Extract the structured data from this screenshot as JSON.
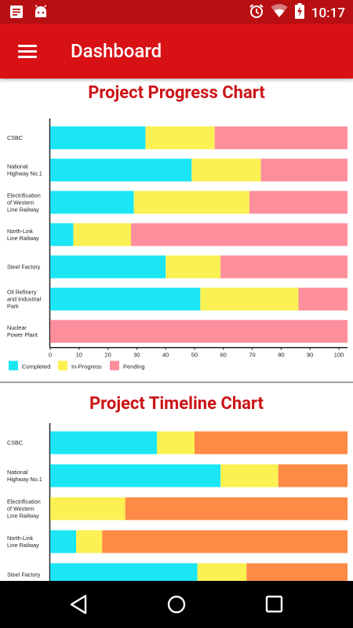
{
  "status_bar": {
    "time": "10:17",
    "left_icons": [
      "message-icon",
      "android-icon"
    ],
    "right_icons": [
      "alarm-icon",
      "wifi-icon",
      "battery-icon"
    ]
  },
  "app_bar": {
    "title": "Dashboard",
    "menu_icon": "hamburger-icon"
  },
  "colors": {
    "completed": "#1ae6f5",
    "in_progress": "#fbf152",
    "pending": "#fd8e9c",
    "delayed": "#fe8a45",
    "title_red": "#cc1417",
    "bar_red": "#d81115"
  },
  "chart_data": [
    {
      "type": "bar",
      "orientation": "horizontal",
      "stacked": true,
      "title": "Project Progress Chart",
      "categories": [
        "CSBC",
        "National Highway No.1",
        "Electrification of Western Line Railway",
        "North-Link Line Railway",
        "Steel Factory",
        "Oil Refinery and Industrial Park",
        "Nuclear Power Plant"
      ],
      "category_lines": [
        [
          "CSBC"
        ],
        [
          "National",
          "Highway No.1"
        ],
        [
          "Electrification",
          "of Western",
          "Line Railway"
        ],
        [
          "North-Link",
          "Line Railway"
        ],
        [
          "Steel Factory"
        ],
        [
          "Oil Refinery",
          "and Industrial",
          "Park"
        ],
        [
          "Nuclear",
          "Power Plant"
        ]
      ],
      "series": [
        {
          "name": "Completed",
          "values": [
            33,
            49,
            29,
            8,
            40,
            52,
            0
          ]
        },
        {
          "name": "In-Progress",
          "values": [
            24,
            24,
            40,
            20,
            19,
            34,
            0
          ]
        },
        {
          "name": "Pending",
          "values": [
            46,
            30,
            34,
            75,
            44,
            17,
            103
          ]
        }
      ],
      "xlim": [
        0,
        103
      ],
      "xticks": [
        0,
        10,
        20,
        30,
        40,
        50,
        60,
        70,
        80,
        90,
        100
      ],
      "legend_position": "bottom-left",
      "grid": false
    },
    {
      "type": "bar",
      "orientation": "horizontal",
      "stacked": true,
      "title": "Project Timeline Chart",
      "categories": [
        "CSBC",
        "National Highway No.1",
        "Electrification of Western Line Railway",
        "North-Link Line Railway",
        "Steel Factory"
      ],
      "category_lines": [
        [
          "CSBC"
        ],
        [
          "National",
          "Highway No.1"
        ],
        [
          "Electrification",
          "of Western",
          "Line Railway"
        ],
        [
          "North-Link",
          "Line Railway"
        ],
        [
          "Steel Factory"
        ]
      ],
      "series": [
        {
          "values": [
            37,
            59,
            0,
            9,
            51
          ]
        },
        {
          "values": [
            13,
            20,
            26,
            9,
            17
          ]
        },
        {
          "values": [
            53,
            24,
            77,
            85,
            35
          ]
        }
      ],
      "xlim": [
        0,
        103
      ],
      "grid": false
    }
  ],
  "nav_bar": {
    "buttons": [
      "back-icon",
      "home-icon",
      "recent-apps-icon"
    ]
  }
}
